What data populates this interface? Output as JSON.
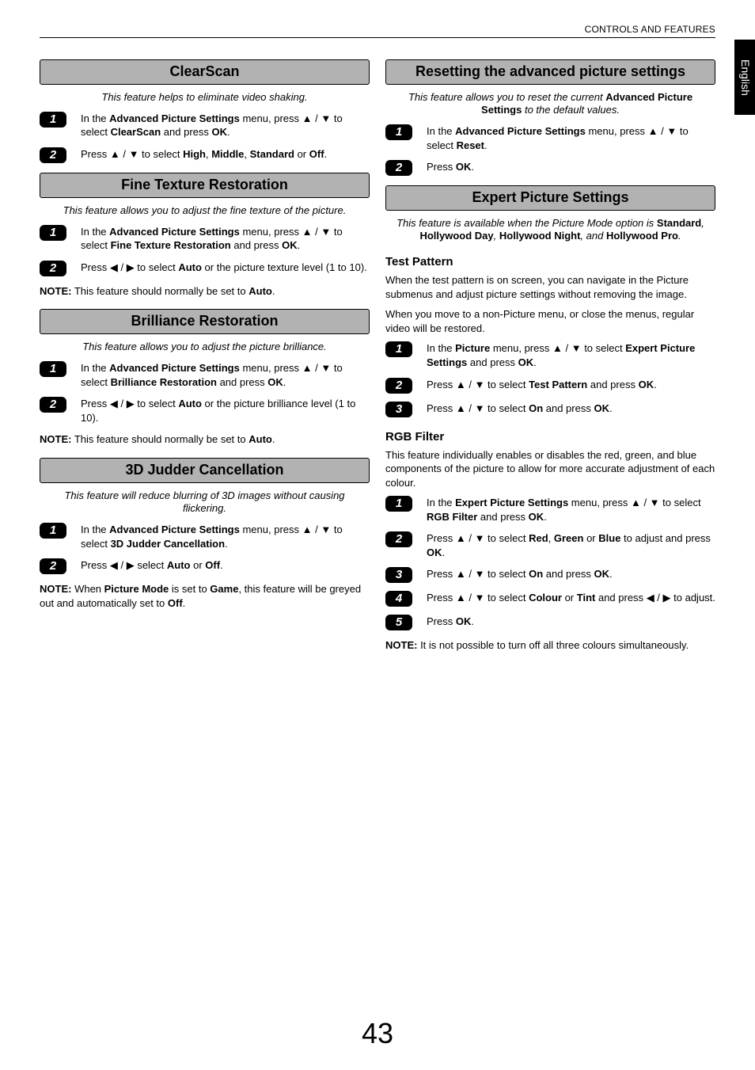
{
  "header": "CONTROLS AND FEATURES",
  "side_tab": "English",
  "page_number": "43",
  "glyph": {
    "up": "▲",
    "down": "▼",
    "left": "◀",
    "right": "▶"
  },
  "left": {
    "s1": {
      "title": "ClearScan",
      "intro": "This feature helps to eliminate video shaking.",
      "step1_a": "In the ",
      "step1_b": "Advanced Picture Settings",
      "step1_c": " menu, press ",
      "step1_d": " to select ",
      "step1_e": "ClearScan",
      "step1_f": " and press ",
      "step1_g": "OK",
      "step1_h": ".",
      "step2_a": "Press ",
      "step2_b": " to select ",
      "step2_c": "High",
      "step2_d": ", ",
      "step2_e": "Middle",
      "step2_f": ", ",
      "step2_g": "Standard",
      "step2_h": " or ",
      "step2_i": "Off",
      "step2_j": "."
    },
    "s2": {
      "title": "Fine Texture Restoration",
      "intro": "This feature allows you to adjust the fine texture of the picture.",
      "step1_a": "In the ",
      "step1_b": "Advanced Picture Settings",
      "step1_c": " menu, press ",
      "step1_d": " to select ",
      "step1_e": "Fine Texture Restoration",
      "step1_f": " and press ",
      "step1_g": "OK",
      "step1_h": ".",
      "step2_a": "Press ",
      "step2_b": " to select ",
      "step2_c": "Auto",
      "step2_d": " or the picture texture level (1 to 10).",
      "note_a": "NOTE:",
      "note_b": " This feature should normally be set to ",
      "note_c": "Auto",
      "note_d": "."
    },
    "s3": {
      "title": "Brilliance Restoration",
      "intro": "This feature allows you to adjust the picture brilliance.",
      "step1_a": "In the ",
      "step1_b": "Advanced Picture Settings",
      "step1_c": " menu, press ",
      "step1_d": " to select ",
      "step1_e": "Brilliance Restoration",
      "step1_f": " and press ",
      "step1_g": "OK",
      "step1_h": ".",
      "step2_a": "Press ",
      "step2_b": " to select ",
      "step2_c": "Auto",
      "step2_d": " or the picture brilliance level (1 to 10).",
      "note_a": "NOTE:",
      "note_b": " This feature should normally be set to ",
      "note_c": "Auto",
      "note_d": "."
    },
    "s4": {
      "title": "3D Judder Cancellation",
      "intro": "This feature will reduce blurring of 3D images without causing flickering.",
      "step1_a": "In the ",
      "step1_b": "Advanced Picture Settings",
      "step1_c": " menu, press ",
      "step1_d": " to select ",
      "step1_e": "3D Judder Cancellation",
      "step1_f": ".",
      "step2_a": "Press ",
      "step2_b": " select ",
      "step2_c": "Auto",
      "step2_d": " or ",
      "step2_e": "Off",
      "step2_f": ".",
      "note_a": "NOTE:",
      "note_b": " When ",
      "note_c": "Picture Mode",
      "note_d": " is set to ",
      "note_e": "Game",
      "note_f": ", this feature will be greyed out and automatically set to ",
      "note_g": "Off",
      "note_h": "."
    }
  },
  "right": {
    "s1": {
      "title": "Resetting the advanced picture settings",
      "intro_a": "This feature allows you to reset the current ",
      "intro_b": "Advanced Picture Settings",
      "intro_c": " to the default values.",
      "step1_a": "In the ",
      "step1_b": "Advanced Picture Settings",
      "step1_c": " menu, press ",
      "step1_d": " to select ",
      "step1_e": "Reset",
      "step1_f": ".",
      "step2_a": "Press ",
      "step2_b": "OK",
      "step2_c": "."
    },
    "s2": {
      "title": "Expert Picture Settings",
      "intro_a": "This feature is available when the Picture Mode option is ",
      "intro_b": "Standard",
      "intro_c": ", ",
      "intro_d": "Hollywood Day",
      "intro_e": ", ",
      "intro_f": "Hollywood Night",
      "intro_g": ", and ",
      "intro_h": "Hollywood Pro",
      "intro_i": "."
    },
    "test": {
      "head": "Test Pattern",
      "body1": "When the test pattern is on screen, you can navigate in the Picture submenus and adjust picture settings without removing the image.",
      "body2": "When you move to a non-Picture menu, or close the menus, regular video will be restored.",
      "step1_a": "In the ",
      "step1_b": "Picture",
      "step1_c": " menu, press ",
      "step1_d": " to select ",
      "step1_e": "Expert Picture Settings",
      "step1_f": " and press ",
      "step1_g": "OK",
      "step1_h": ".",
      "step2_a": "Press ",
      "step2_b": " to select ",
      "step2_c": "Test Pattern",
      "step2_d": " and press ",
      "step2_e": "OK",
      "step2_f": ".",
      "step3_a": "Press ",
      "step3_b": " to select ",
      "step3_c": "On",
      "step3_d": " and press ",
      "step3_e": "OK",
      "step3_f": "."
    },
    "rgb": {
      "head": "RGB Filter",
      "body": "This feature individually enables or disables the red, green, and blue components of the picture to allow for more accurate adjustment of each colour.",
      "step1_a": "In the ",
      "step1_b": "Expert Picture Settings",
      "step1_c": " menu, press ",
      "step1_d": " to select ",
      "step1_e": "RGB Filter",
      "step1_f": " and press ",
      "step1_g": "OK",
      "step1_h": ".",
      "step2_a": "Press ",
      "step2_b": " to select ",
      "step2_c": "Red",
      "step2_d": ", ",
      "step2_e": "Green",
      "step2_f": " or ",
      "step2_g": "Blue",
      "step2_h": " to adjust and press ",
      "step2_i": "OK",
      "step2_j": ".",
      "step3_a": "Press ",
      "step3_b": " to select ",
      "step3_c": "On",
      "step3_d": " and press ",
      "step3_e": "OK",
      "step3_f": ".",
      "step4_a": "Press ",
      "step4_b": " to select ",
      "step4_c": "Colour",
      "step4_d": " or ",
      "step4_e": "Tint",
      "step4_f": " and press ",
      "step4_g": " to adjust.",
      "step5_a": "Press ",
      "step5_b": "OK",
      "step5_c": ".",
      "note_a": "NOTE:",
      "note_b": " It is not possible to turn off all three colours simultaneously."
    }
  }
}
